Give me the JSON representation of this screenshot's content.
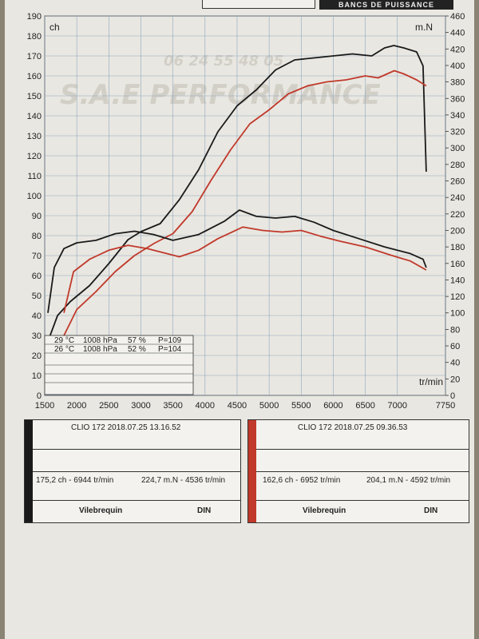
{
  "header": {
    "label": "BANCS DE PUISSANCE"
  },
  "watermark": {
    "phone": "06 24 55 48 05",
    "brand": "S.A.E PERFORMANCE"
  },
  "chart_data": {
    "type": "line",
    "xlabel": "tr/min",
    "ylabel_left": "ch",
    "ylabel_right": "m.N",
    "xlim": [
      1500,
      7750
    ],
    "ylim_left": [
      0,
      190
    ],
    "ylim_right": [
      0,
      460
    ],
    "x_ticks": [
      1500,
      2000,
      2500,
      3000,
      3500,
      4000,
      4500,
      5000,
      5500,
      6000,
      6500,
      7000,
      7750
    ],
    "y_ticks_left": [
      0,
      10,
      20,
      30,
      40,
      50,
      60,
      70,
      80,
      90,
      100,
      110,
      120,
      130,
      140,
      150,
      160,
      170,
      180,
      190
    ],
    "y_ticks_right": [
      0,
      20,
      40,
      60,
      80,
      100,
      120,
      140,
      160,
      180,
      200,
      220,
      240,
      260,
      280,
      300,
      320,
      340,
      360,
      380,
      400,
      420,
      440,
      460
    ],
    "grid": true,
    "series": [
      {
        "color": "#1a1a1a",
        "axis": "left",
        "x": [
          1550,
          1700,
          1900,
          2200,
          2500,
          2800,
          3000,
          3300,
          3600,
          3900,
          4200,
          4500,
          4800,
          5100,
          5400,
          5700,
          6000,
          6300,
          6600,
          6800,
          6944,
          7100,
          7300,
          7400,
          7450
        ],
        "y": [
          27,
          40,
          47,
          55,
          66,
          78,
          82,
          86,
          98,
          113,
          132,
          145,
          153,
          163,
          168,
          169,
          170,
          171,
          170,
          174,
          175.2,
          174,
          172,
          165,
          112
        ]
      },
      {
        "color": "#c0392b",
        "axis": "left",
        "x": [
          1800,
          2000,
          2300,
          2600,
          2900,
          3200,
          3500,
          3800,
          4100,
          4400,
          4700,
          5000,
          5300,
          5600,
          5900,
          6200,
          6500,
          6700,
          6952,
          7100,
          7300,
          7450
        ],
        "y": [
          30,
          43,
          52,
          62,
          70,
          76,
          81,
          92,
          108,
          123,
          136,
          143,
          151,
          155,
          157,
          158,
          160,
          159,
          162.6,
          161,
          158,
          155
        ]
      },
      {
        "color": "#1a1a1a",
        "axis": "right",
        "x": [
          1550,
          1650,
          1800,
          2000,
          2300,
          2600,
          2900,
          3200,
          3500,
          3900,
          4300,
          4536,
          4800,
          5100,
          5400,
          5700,
          6000,
          6400,
          6800,
          7200,
          7400,
          7450
        ],
        "y": [
          100,
          155,
          178,
          185,
          188,
          196,
          199,
          195,
          188,
          195,
          211,
          224.7,
          217,
          215,
          217,
          210,
          200,
          190,
          180,
          172,
          165,
          155
        ]
      },
      {
        "color": "#c0392b",
        "axis": "right",
        "x": [
          1800,
          1950,
          2200,
          2500,
          2800,
          3100,
          3400,
          3600,
          3900,
          4200,
          4592,
          4900,
          5200,
          5500,
          5800,
          6100,
          6500,
          6900,
          7200,
          7450
        ],
        "y": [
          100,
          150,
          165,
          176,
          182,
          178,
          172,
          168,
          176,
          190,
          204.1,
          200,
          198,
          200,
          193,
          187,
          180,
          170,
          163,
          152
        ]
      }
    ]
  },
  "conditions": [
    {
      "temp": "29 °C",
      "pressure": "1008 hPa",
      "humidity": "57 %",
      "p": "P=109"
    },
    {
      "temp": "26 °C",
      "pressure": "1008 hPa",
      "humidity": "52 %",
      "p": "P=104"
    }
  ],
  "results": [
    {
      "color": "#1a1a1a",
      "title": "CLIO 172   2018.07.25 13.16.52",
      "power": "175,2 ch - 6944 tr/min",
      "torque": "224,7 m.N - 4536 tr/min",
      "mode": "Vilebrequin",
      "norm": "DIN"
    },
    {
      "color": "#c0392b",
      "title": "CLIO 172   2018.07.25 09.36.53",
      "power": "162,6 ch - 6952 tr/min",
      "torque": "204,1 m.N - 4592 tr/min",
      "mode": "Vilebrequin",
      "norm": "DIN"
    }
  ]
}
